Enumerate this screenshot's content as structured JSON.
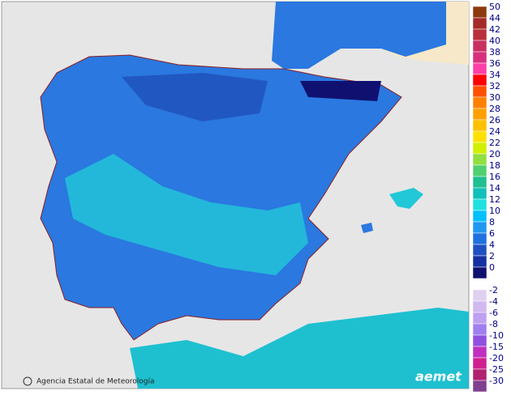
{
  "credit": "Agencia Estatal de Meteorología",
  "logo": "aemet",
  "legend": {
    "items": [
      {
        "label": 50,
        "color": "#8b3a0e"
      },
      {
        "label": 44,
        "color": "#a52a2a"
      },
      {
        "label": 42,
        "color": "#b8303a"
      },
      {
        "label": 40,
        "color": "#c83060"
      },
      {
        "label": 38,
        "color": "#d8307e"
      },
      {
        "label": 36,
        "color": "#ff40a8"
      },
      {
        "label": 34,
        "color": "#ff0000"
      },
      {
        "label": 32,
        "color": "#ff5000"
      },
      {
        "label": 30,
        "color": "#ff8000"
      },
      {
        "label": 28,
        "color": "#ffa000"
      },
      {
        "label": 26,
        "color": "#ffc000"
      },
      {
        "label": 24,
        "color": "#ffe000"
      },
      {
        "label": 22,
        "color": "#d0f000"
      },
      {
        "label": 20,
        "color": "#90e040"
      },
      {
        "label": 18,
        "color": "#50d070"
      },
      {
        "label": 16,
        "color": "#20c090"
      },
      {
        "label": 14,
        "color": "#10c0b8"
      },
      {
        "label": 12,
        "color": "#20e0e0"
      },
      {
        "label": 10,
        "color": "#00c0ff"
      },
      {
        "label": 8,
        "color": "#2098f0"
      },
      {
        "label": 6,
        "color": "#2070e0"
      },
      {
        "label": 4,
        "color": "#2050c0"
      },
      {
        "label": 2,
        "color": "#1530a0"
      },
      {
        "label": 0,
        "color": "#101070"
      },
      {
        "label": -2,
        "color": "#e0d0f0"
      },
      {
        "label": -4,
        "color": "#d0b8f0"
      },
      {
        "label": -6,
        "color": "#c0a0f0"
      },
      {
        "label": -8,
        "color": "#a080f0"
      },
      {
        "label": -10,
        "color": "#9050e0"
      },
      {
        "label": -15,
        "color": "#c030c0"
      },
      {
        "label": -20,
        "color": "#d02090"
      },
      {
        "label": -25,
        "color": "#b02070"
      },
      {
        "label": -30,
        "color": "#804090"
      }
    ]
  }
}
